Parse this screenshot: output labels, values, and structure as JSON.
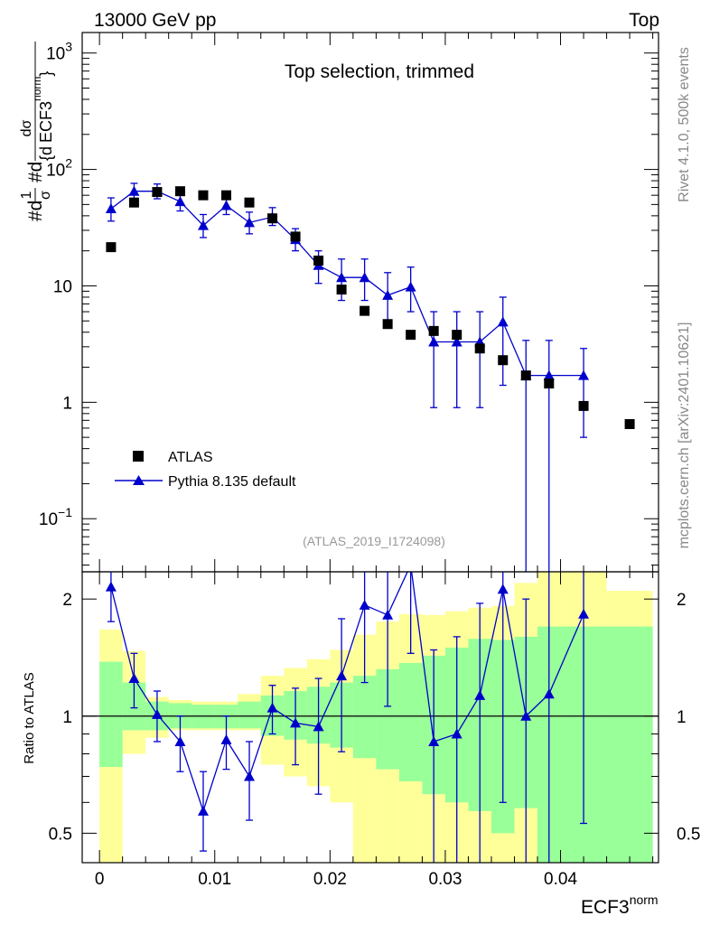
{
  "header": {
    "left": "13000 GeV pp",
    "right": "Top"
  },
  "side_labels": {
    "rivet": "Rivet 4.1.0,  500k events",
    "mcplots": "mcplots.cern.ch [arXiv:2401.10621]"
  },
  "chart_data": [
    {
      "type": "scatter",
      "panel": "main",
      "title": "Top selection, trimmed",
      "ylabel_parts": {
        "prefix": "#d",
        "frac1_num": "1",
        "frac1_den": "σ",
        "hashd": "#d",
        "frac2_num": "dσ",
        "frac2_den_open": "{d",
        "frac2_den_var": "ECF3",
        "frac2_den_sup": "norm",
        "frac2_den_close": "}"
      },
      "yscale": "log",
      "xlim": [
        -0.0015,
        0.0485
      ],
      "ylim": [
        0.035,
        1500
      ],
      "yticks": [
        {
          "value": 0.1,
          "base": "10",
          "exp": "−1"
        },
        {
          "value": 1,
          "base": "1",
          "exp": ""
        },
        {
          "value": 10,
          "base": "10",
          "exp": ""
        },
        {
          "value": 100,
          "base": "10",
          "exp": "2"
        },
        {
          "value": 1000,
          "base": "10",
          "exp": "3"
        }
      ],
      "legend": {
        "position": "bottom-left",
        "entries": [
          "ATLAS",
          "Pythia 8.135 default"
        ]
      },
      "annotation": "(ATLAS_2019_I1724098)",
      "series": [
        {
          "name": "ATLAS",
          "marker": "square",
          "color": "#000000",
          "x": [
            0.001,
            0.003,
            0.005,
            0.007,
            0.009,
            0.011,
            0.013,
            0.015,
            0.017,
            0.019,
            0.021,
            0.023,
            0.025,
            0.027,
            0.029,
            0.031,
            0.033,
            0.035,
            0.037,
            0.039,
            0.042,
            0.046
          ],
          "y": [
            21.5,
            52,
            64,
            65,
            60,
            60,
            52,
            38,
            26.5,
            16.5,
            9.3,
            6.1,
            4.7,
            3.8,
            4.1,
            3.8,
            2.9,
            2.3,
            1.7,
            1.45,
            0.93,
            0.65
          ]
        },
        {
          "name": "Pythia 8.135 default",
          "marker": "triangle",
          "color": "#0000cc",
          "x": [
            0.001,
            0.003,
            0.005,
            0.007,
            0.009,
            0.011,
            0.013,
            0.015,
            0.017,
            0.019,
            0.021,
            0.023,
            0.025,
            0.027,
            0.029,
            0.031,
            0.033,
            0.035,
            0.037,
            0.039,
            0.042
          ],
          "y": [
            46,
            65,
            65,
            53,
            33,
            49,
            35,
            39,
            25,
            15,
            11.8,
            11.8,
            8.3,
            9.8,
            3.3,
            3.3,
            3.3,
            4.9,
            1.7,
            1.7,
            1.7
          ],
          "err_lo": [
            36,
            55,
            56,
            44,
            26,
            41,
            28,
            33,
            20,
            10.5,
            7.5,
            7.5,
            5,
            6,
            0.9,
            0.9,
            0.9,
            1.4,
            0.02,
            0.02,
            0.5
          ],
          "err_hi": [
            57,
            76,
            75,
            63,
            41,
            58,
            43,
            47,
            31,
            20,
            17,
            17,
            13,
            14.5,
            6,
            6,
            6,
            8,
            3.4,
            3.4,
            2.9
          ]
        }
      ]
    },
    {
      "type": "scatter",
      "panel": "ratio",
      "ylabel": "Ratio to ATLAS",
      "xlabel_base": "ECF3",
      "xlabel_sup": "norm",
      "yscale": "log",
      "xlim": [
        -0.0015,
        0.0485
      ],
      "ylim": [
        0.42,
        2.35
      ],
      "xticks": [
        {
          "value": 0,
          "label": "0"
        },
        {
          "value": 0.01,
          "label": "0.01"
        },
        {
          "value": 0.02,
          "label": "0.02"
        },
        {
          "value": 0.03,
          "label": "0.03"
        },
        {
          "value": 0.04,
          "label": "0.04"
        }
      ],
      "yticks": [
        {
          "value": 0.5,
          "label": "0.5"
        },
        {
          "value": 1,
          "label": "1"
        },
        {
          "value": 2,
          "label": "2"
        }
      ],
      "reference_line": 1,
      "bins": [
        0,
        0.002,
        0.004,
        0.006,
        0.008,
        0.01,
        0.012,
        0.014,
        0.016,
        0.018,
        0.02,
        0.022,
        0.024,
        0.026,
        0.028,
        0.03,
        0.032,
        0.034,
        0.036,
        0.038,
        0.04,
        0.044,
        0.048
      ],
      "band_1sigma": {
        "color": "#99ff99",
        "lo": [
          0.74,
          0.92,
          0.92,
          0.93,
          0.93,
          0.93,
          0.93,
          0.89,
          0.87,
          0.85,
          0.83,
          0.78,
          0.73,
          0.68,
          0.63,
          0.6,
          0.57,
          0.5,
          0.58,
          0.42,
          0.42,
          0.42
        ],
        "hi": [
          1.38,
          1.22,
          1.09,
          1.08,
          1.07,
          1.07,
          1.09,
          1.13,
          1.16,
          1.19,
          1.22,
          1.27,
          1.32,
          1.37,
          1.43,
          1.5,
          1.58,
          1.57,
          1.6,
          1.7,
          1.7,
          1.7
        ]
      },
      "band_2sigma": {
        "color": "#ffff99",
        "lo": [
          0.42,
          0.8,
          0.88,
          0.92,
          0.92,
          0.92,
          0.92,
          0.75,
          0.7,
          0.66,
          0.6,
          0.42,
          0.42,
          0.42,
          0.42,
          0.42,
          0.42,
          0.42,
          0.42,
          0.42,
          0.42,
          0.42
        ],
        "hi": [
          1.67,
          1.47,
          1.12,
          1.1,
          1.09,
          1.09,
          1.14,
          1.27,
          1.33,
          1.4,
          1.48,
          1.62,
          1.75,
          1.83,
          1.82,
          1.86,
          1.9,
          1.92,
          2.2,
          2.35,
          2.35,
          2.1
        ]
      },
      "series": [
        {
          "name": "Pythia 8.135 default",
          "marker": "triangle",
          "color": "#0000cc",
          "x": [
            0.001,
            0.003,
            0.005,
            0.007,
            0.009,
            0.011,
            0.013,
            0.015,
            0.017,
            0.019,
            0.021,
            0.023,
            0.025,
            0.027,
            0.029,
            0.031,
            0.033,
            0.035,
            0.037,
            0.039,
            0.042
          ],
          "y": [
            2.15,
            1.25,
            1.01,
            0.86,
            0.57,
            0.87,
            0.7,
            1.05,
            0.96,
            0.94,
            1.27,
            1.93,
            1.82,
            2.45,
            0.86,
            0.9,
            1.13,
            2.12,
            1.0,
            1.14,
            1.83
          ],
          "err_lo": [
            1.75,
            1.05,
            0.86,
            0.72,
            0.45,
            0.73,
            0.54,
            0.9,
            0.75,
            0.63,
            0.81,
            1.22,
            1.06,
            1.45,
            0.2,
            0.2,
            0.2,
            0.6,
            0.2,
            0.2,
            0.53
          ],
          "err_hi": [
            2.5,
            1.45,
            1.16,
            1.0,
            0.72,
            1.0,
            0.86,
            1.2,
            1.18,
            1.25,
            1.78,
            2.6,
            2.6,
            3.5,
            1.48,
            1.6,
            1.95,
            3.5,
            2.0,
            2.35,
            3.2
          ]
        }
      ]
    }
  ]
}
